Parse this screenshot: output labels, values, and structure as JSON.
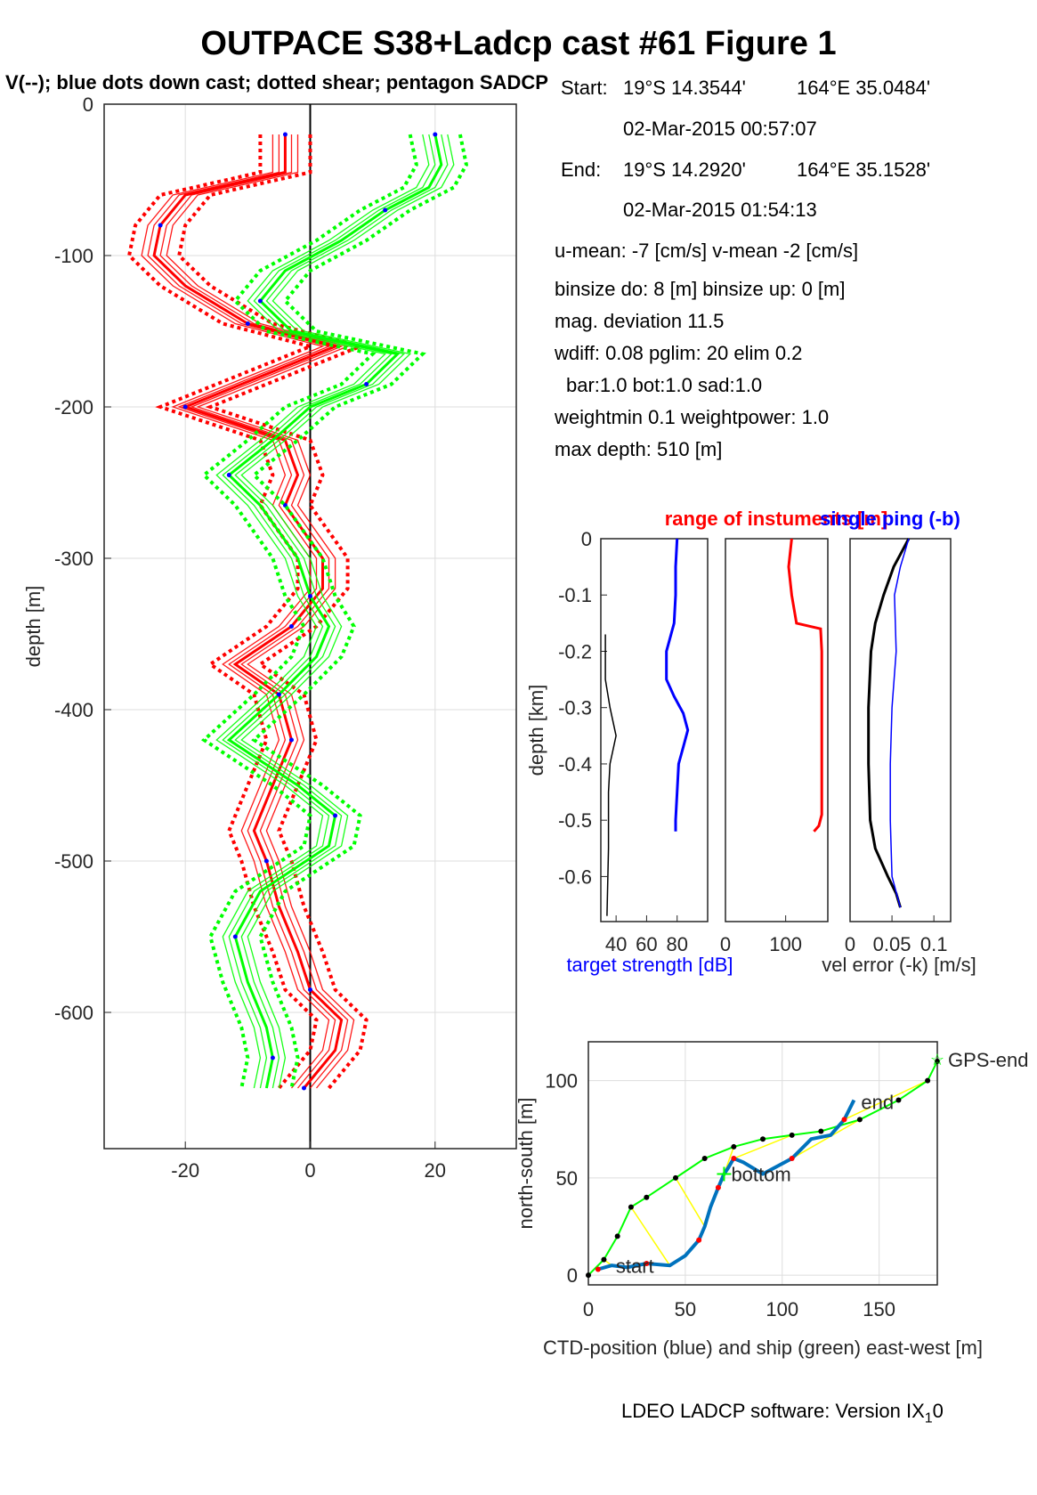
{
  "header": {
    "title": "OUTPACE S38+Ladcp cast #61  Figure 1",
    "subtitle": "V(--); blue dots down cast; dotted shear; pentagon SADCP"
  },
  "info": {
    "start_label": "Start:",
    "start_lat": "19°S 14.3544'",
    "start_lon": "164°E 35.0484'",
    "start_time": "02-Mar-2015 00:57:07",
    "end_label": "End:",
    "end_lat": "19°S 14.2920'",
    "end_lon": "164°E 35.1528'",
    "end_time": "02-Mar-2015 01:54:13",
    "mean_line": "u-mean:  -7 [cm/s]     v-mean  -2 [cm/s]",
    "binsize_line": "binsize do: 8 [m]  binsize up:  0 [m]",
    "magdev_line": "mag. deviation 11.5",
    "wdiff_line": "wdiff: 0.08  pglim: 20  elim 0.2",
    "bar_line": "bar:1.0 bot:1.0 sad:1.0",
    "weight_line": "weightmin 0.1  weightpower: 1.0",
    "maxdepth_line": "max depth: 510 [m]"
  },
  "footer": {
    "text": "LDEO LADCP software: Version IX",
    "subscript": "1",
    "suffix": "0"
  },
  "colors": {
    "u": "#ff0000",
    "v": "#00ff00",
    "blue": "#0000ff",
    "ctd": "#0072bd",
    "ship": "#00ff00",
    "yellow": "#ffff00",
    "axis": "#262626",
    "grid": "#dddddd"
  },
  "chart_data": [
    {
      "type": "line",
      "name": "velocity-profile",
      "ylabel": "depth [m]",
      "xlim": [
        -33,
        33
      ],
      "ylim": [
        -690,
        0
      ],
      "xticks": [
        -20,
        0,
        20
      ],
      "yticks": [
        0,
        -100,
        -200,
        -300,
        -400,
        -500,
        -600
      ],
      "grid": true,
      "series": [
        {
          "color": "red",
          "depth": [
            -20,
            -45,
            -60,
            -80,
            -100,
            -120,
            -145,
            -160,
            -175,
            -200,
            -222,
            -245,
            -265,
            -300,
            -320,
            -345,
            -370,
            -390,
            -420,
            -450,
            -480,
            -500,
            -530,
            -560,
            -585,
            -605,
            -625,
            -650
          ],
          "values": [
            -4,
            -4,
            -20,
            -24,
            -25,
            -20,
            -10,
            4,
            -5,
            -20,
            -4,
            -2,
            -4,
            2,
            2,
            -3,
            -12,
            -5,
            -3,
            -6,
            -9,
            -7,
            -5,
            -2,
            0,
            5,
            4,
            -1
          ]
        },
        {
          "color": "green",
          "depth": [
            -20,
            -40,
            -55,
            -70,
            -90,
            -110,
            -130,
            -150,
            -165,
            -185,
            -200,
            -222,
            -245,
            -265,
            -300,
            -325,
            -345,
            -365,
            -390,
            -420,
            -450,
            -470,
            -490,
            -520,
            -550,
            -580,
            -610,
            -630,
            -650
          ],
          "values": [
            20,
            21,
            19,
            12,
            5,
            -4,
            -8,
            -3,
            14,
            9,
            0,
            -6,
            -13,
            -8,
            -2,
            0,
            3,
            1,
            -5,
            -13,
            -2,
            4,
            3,
            -8,
            -12,
            -10,
            -7,
            -6,
            -7
          ]
        }
      ]
    },
    {
      "type": "line",
      "name": "target-strength",
      "ylabel": "depth [km]",
      "xlabel": "target strength [dB]",
      "xlim": [
        30,
        100
      ],
      "ylim": [
        -0.68,
        0
      ],
      "xticks": [
        40,
        60,
        80
      ],
      "yticks": [
        0,
        -0.1,
        -0.2,
        -0.3,
        -0.4,
        -0.5,
        -0.6
      ],
      "series": [
        {
          "color": "blue",
          "depth": [
            0,
            -0.05,
            -0.1,
            -0.15,
            -0.2,
            -0.25,
            -0.28,
            -0.31,
            -0.34,
            -0.37,
            -0.4,
            -0.45,
            -0.5,
            -0.52
          ],
          "values": [
            80,
            79,
            79,
            78,
            73,
            73,
            78,
            84,
            87,
            84,
            81,
            80,
            79,
            79
          ]
        },
        {
          "color": "black",
          "depth": [
            -0.17,
            -0.25,
            -0.3,
            -0.35,
            -0.4,
            -0.45,
            -0.55,
            -0.67
          ],
          "values": [
            33,
            33,
            36,
            40,
            36,
            35,
            35,
            34
          ]
        }
      ]
    },
    {
      "type": "line",
      "name": "instrument-range",
      "title": "range of instuments [m]",
      "xlim": [
        0,
        170
      ],
      "ylim": [
        -0.68,
        0
      ],
      "xticks": [
        0,
        100
      ],
      "series": [
        {
          "color": "red",
          "depth": [
            0,
            -0.05,
            -0.1,
            -0.15,
            -0.16,
            -0.2,
            -0.3,
            -0.4,
            -0.49,
            -0.51,
            -0.52
          ],
          "values": [
            110,
            105,
            110,
            118,
            158,
            160,
            160,
            160,
            160,
            155,
            147
          ]
        }
      ]
    },
    {
      "type": "line",
      "name": "vel-error",
      "title": "single ping (-b)",
      "xlabel": "vel error (-k) [m/s]",
      "xlim": [
        0,
        0.12
      ],
      "ylim": [
        -0.68,
        0
      ],
      "xticks": [
        0,
        0.05,
        0.1
      ],
      "series": [
        {
          "color": "black",
          "depth": [
            0,
            -0.05,
            -0.1,
            -0.15,
            -0.2,
            -0.3,
            -0.4,
            -0.5,
            -0.55,
            -0.6,
            -0.63,
            -0.655
          ],
          "values": [
            0.07,
            0.052,
            0.04,
            0.03,
            0.025,
            0.022,
            0.022,
            0.024,
            0.03,
            0.045,
            0.055,
            0.06
          ]
        },
        {
          "color": "blue",
          "depth": [
            0,
            -0.05,
            -0.1,
            -0.2,
            -0.3,
            -0.4,
            -0.5,
            -0.6,
            -0.655
          ],
          "values": [
            0.07,
            0.06,
            0.053,
            0.055,
            0.05,
            0.048,
            0.048,
            0.05,
            0.06
          ]
        }
      ]
    },
    {
      "type": "line",
      "name": "position",
      "xlabel": "CTD-position (blue) and ship (green) east-west [m]",
      "ylabel": "north-south [m]",
      "xlim": [
        0,
        180
      ],
      "ylim": [
        -5,
        120
      ],
      "xticks": [
        0,
        50,
        100,
        150
      ],
      "yticks": [
        0,
        50,
        100
      ],
      "grid": true,
      "ctd": {
        "x": [
          5,
          12,
          20,
          30,
          42,
          50,
          57,
          60,
          63,
          67,
          70,
          72,
          75,
          80,
          90,
          105,
          115,
          125,
          132,
          137
        ],
        "y": [
          3,
          5,
          4,
          6,
          5,
          10,
          18,
          25,
          35,
          45,
          52,
          55,
          60,
          58,
          52,
          60,
          70,
          72,
          80,
          90
        ]
      },
      "ship": {
        "x": [
          0,
          8,
          15,
          22,
          30,
          45,
          60,
          75,
          90,
          105,
          120,
          140,
          160,
          175,
          180
        ],
        "y": [
          0,
          8,
          20,
          35,
          40,
          50,
          60,
          66,
          70,
          72,
          74,
          80,
          90,
          100,
          110
        ]
      },
      "labels": {
        "start": "start",
        "bottom": "bottom",
        "end": "end",
        "gps_end": "GPS-end"
      }
    }
  ]
}
